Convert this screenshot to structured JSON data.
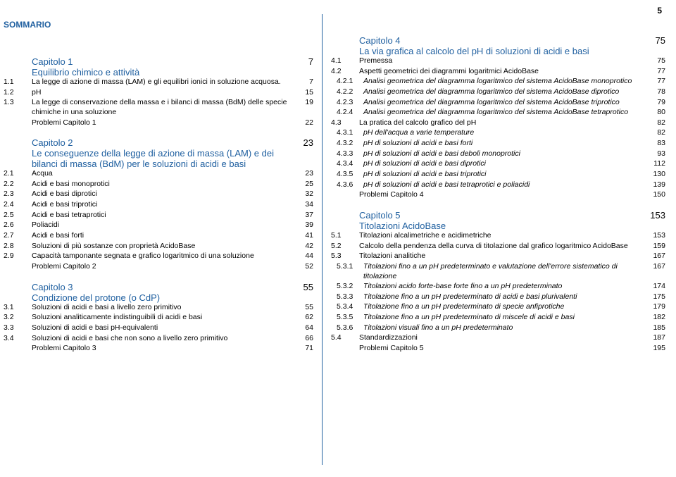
{
  "page_number": "5",
  "heading": "SOMMARIO",
  "left": {
    "ch1": {
      "title": "Capitolo 1",
      "subtitle": "Equilibrio chimico e attività",
      "page": "7",
      "rows": [
        {
          "n": "1.1",
          "t": "La legge di azione di massa (LAM) e gli equilibri ionici in soluzione acquosa.",
          "p": "7"
        },
        {
          "n": "1.2",
          "t": "pH",
          "p": "15"
        },
        {
          "n": "1.3",
          "t": "La legge di conservazione della massa e i bilanci di massa (BdM) delle specie chimiche in una soluzione",
          "p": "19"
        },
        {
          "n": "",
          "t": "Problemi Capitolo 1",
          "p": "22"
        }
      ]
    },
    "ch2": {
      "title": "Capitolo 2",
      "subtitle": "Le conseguenze della legge di azione di massa (LAM) e dei bilanci di massa (BdM) per le soluzioni di acidi e basi",
      "page": "23",
      "rows": [
        {
          "n": "2.1",
          "t": "Acqua",
          "p": "23"
        },
        {
          "n": "2.2",
          "t": "Acidi e basi monoprotici",
          "p": "25"
        },
        {
          "n": "2.3",
          "t": "Acidi e basi diprotici",
          "p": "32"
        },
        {
          "n": "2.4",
          "t": "Acidi e basi triprotici",
          "p": "34"
        },
        {
          "n": "2.5",
          "t": "Acidi e basi tetraprotici",
          "p": "37"
        },
        {
          "n": "2.6",
          "t": "Poliacidi",
          "p": "39"
        },
        {
          "n": "2.7",
          "t": "Acidi e basi forti",
          "p": "41"
        },
        {
          "n": "2.8",
          "t": "Soluzioni di più sostanze con proprietà AcidoBase",
          "p": "42"
        },
        {
          "n": "2.9",
          "t": "Capacità tamponante segnata e grafico logaritmico di una soluzione",
          "p": "44"
        },
        {
          "n": "",
          "t": "Problemi Capitolo 2",
          "p": "52"
        }
      ]
    },
    "ch3": {
      "title": "Capitolo 3",
      "subtitle": "Condizione del protone (o CdP)",
      "page": "55",
      "rows": [
        {
          "n": "3.1",
          "t": "Soluzioni di acidi e basi a livello zero primitivo",
          "p": "55"
        },
        {
          "n": "3.2",
          "t": "Soluzioni analiticamente indistinguibili di acidi e basi",
          "p": "62"
        },
        {
          "n": "3.3",
          "t": "Soluzioni di acidi e basi pH-equivalenti",
          "p": "64"
        },
        {
          "n": "3.4",
          "t": "Soluzioni di acidi e basi che non sono a livello zero primitivo",
          "p": "66"
        },
        {
          "n": "",
          "t": "Problemi Capitolo 3",
          "p": "71"
        }
      ]
    }
  },
  "right": {
    "ch4": {
      "title": "Capitolo 4",
      "subtitle": "La via grafica al calcolo del pH di soluzioni di acidi e basi",
      "page": "75",
      "rows": [
        {
          "n": "4.1",
          "t": "Premessa",
          "p": "75",
          "sub": false,
          "it": false
        },
        {
          "n": "4.2",
          "t": "Aspetti geometrici dei diagrammi logaritmici AcidoBase",
          "p": "77",
          "sub": false,
          "it": false
        },
        {
          "n": "4.2.1",
          "t": "Analisi geometrica del diagramma logaritmico del sistema AcidoBase monoprotico",
          "p": "77",
          "sub": true,
          "it": true
        },
        {
          "n": "4.2.2",
          "t": "Analisi geometrica del diagramma logaritmico del sistema AcidoBase diprotico",
          "p": "78",
          "sub": true,
          "it": true
        },
        {
          "n": "4.2.3",
          "t": "Analisi geometrica del diagramma logaritmico del sistema AcidoBase triprotico",
          "p": "79",
          "sub": true,
          "it": true
        },
        {
          "n": "4.2.4",
          "t": "Analisi geometrica del diagramma logaritmico del sistema AcidoBase tetraprotico",
          "p": "80",
          "sub": true,
          "it": true
        },
        {
          "n": "4.3",
          "t": "La pratica del calcolo grafico del pH",
          "p": "82",
          "sub": false,
          "it": false
        },
        {
          "n": "4.3.1",
          "t": "pH dell'acqua a varie temperature",
          "p": "82",
          "sub": true,
          "it": true
        },
        {
          "n": "4.3.2",
          "t": "pH di soluzioni di acidi e basi forti",
          "p": "83",
          "sub": true,
          "it": true
        },
        {
          "n": "4.3.3",
          "t": "pH di soluzioni di acidi e basi deboli monoprotici",
          "p": "93",
          "sub": true,
          "it": true
        },
        {
          "n": "4.3.4",
          "t": "pH di soluzioni di acidi e basi diprotici",
          "p": "112",
          "sub": true,
          "it": true
        },
        {
          "n": "4.3.5",
          "t": "pH di soluzioni di acidi e basi triprotici",
          "p": "130",
          "sub": true,
          "it": true
        },
        {
          "n": "4.3.6",
          "t": "pH di soluzioni di acidi e basi tetraprotici e poliacidi",
          "p": "139",
          "sub": true,
          "it": true
        },
        {
          "n": "",
          "t": "Problemi Capitolo 4",
          "p": "150",
          "sub": false,
          "it": false
        }
      ]
    },
    "ch5": {
      "title": "Capitolo 5",
      "subtitle": "Titolazioni AcidoBase",
      "page": "153",
      "rows": [
        {
          "n": "5.1",
          "t": "Titolazioni alcalimetriche e acidimetriche",
          "p": "153",
          "sub": false,
          "it": false
        },
        {
          "n": "5.2",
          "t": "Calcolo della pendenza della curva di titolazione dal grafico logaritmico AcidoBase",
          "p": "159",
          "sub": false,
          "it": false
        },
        {
          "n": "5.3",
          "t": "Titolazioni analitiche",
          "p": "167",
          "sub": false,
          "it": false
        },
        {
          "n": "5.3.1",
          "t": "Titolazioni fino a un pH predeterminato e valutazione dell'errore sistematico di titolazione",
          "p": "167",
          "sub": true,
          "it": true
        },
        {
          "n": "5.3.2",
          "t": "Titolazioni acido forte-base forte fino a un pH predeterminato",
          "p": "174",
          "sub": true,
          "it": true
        },
        {
          "n": "5.3.3",
          "t": "Titolazione fino a un pH predeterminato di acidi e basi plurivalenti",
          "p": "175",
          "sub": true,
          "it": true
        },
        {
          "n": "5.3.4",
          "t": "Titolazione fino a un pH predeterminato di specie anfiprotiche",
          "p": "179",
          "sub": true,
          "it": true
        },
        {
          "n": "5.3.5",
          "t": "Titolazione fino a un pH predeterminato di miscele di acidi e basi",
          "p": "182",
          "sub": true,
          "it": true
        },
        {
          "n": "5.3.6",
          "t": "Titolazioni visuali fino a un pH predeterminato",
          "p": "185",
          "sub": true,
          "it": true
        },
        {
          "n": "5.4",
          "t": "Standardizzazioni",
          "p": "187",
          "sub": false,
          "it": false
        },
        {
          "n": "",
          "t": "Problemi Capitolo 5",
          "p": "195",
          "sub": false,
          "it": false
        }
      ]
    }
  }
}
